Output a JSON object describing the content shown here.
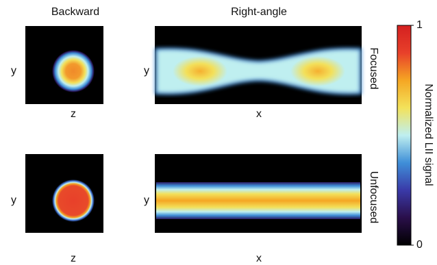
{
  "columns": [
    "Backward",
    "Right-angle"
  ],
  "rows": [
    "Focused",
    "Unfocused"
  ],
  "panels": [
    {
      "x_label": "z",
      "y_label": "y"
    },
    {
      "x_label": "x",
      "y_label": "y"
    },
    {
      "x_label": "z",
      "y_label": "y"
    },
    {
      "x_label": "x",
      "y_label": "y"
    }
  ],
  "colorbar": {
    "label": "Normalized LII signal",
    "lim": [
      0,
      1
    ],
    "ticks": [
      0,
      1
    ],
    "colors": [
      "#000000",
      "#2a0f4a",
      "#3a3aa8",
      "#3f8fd8",
      "#bfeff0",
      "#f3e25a",
      "#f5a623",
      "#e8402a",
      "#d42020"
    ]
  }
}
